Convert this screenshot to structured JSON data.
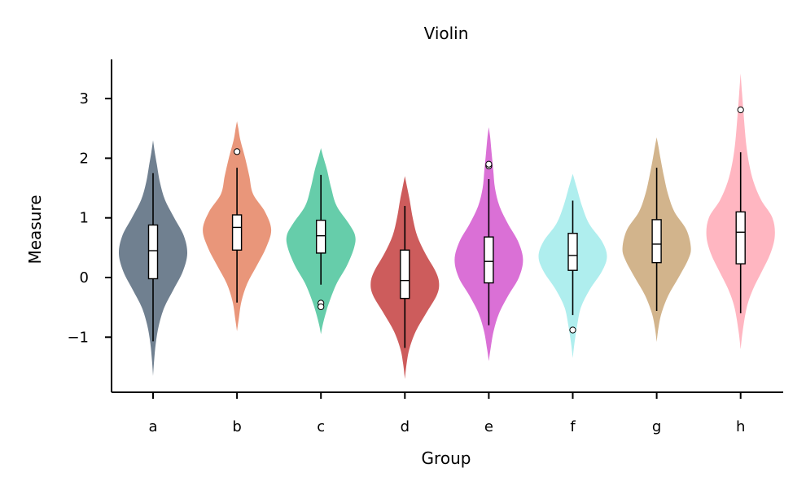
{
  "chart_data": {
    "type": "violin",
    "title": "Violin",
    "xlabel": "Group",
    "ylabel": "Measure",
    "ylim": [
      -1.95,
      3.65
    ],
    "yticks": [
      -1,
      0,
      1,
      2,
      3
    ],
    "ytick_labels": [
      "−1",
      "0",
      "1",
      "2",
      "3"
    ],
    "grid": false,
    "categories": [
      "a",
      "b",
      "c",
      "d",
      "e",
      "f",
      "g",
      "h"
    ],
    "colors": [
      "#708090",
      "#E9967A",
      "#66CDAA",
      "#CD5C5C",
      "#DA70D6",
      "#AFEEEE",
      "#D2B48C",
      "#FFB6C1"
    ],
    "groups": [
      {
        "name": "a",
        "min": -1.65,
        "max": 2.3,
        "median": 0.45,
        "q1": -0.02,
        "q3": 0.88,
        "whisker_low": -1.07,
        "whisker_high": 1.75,
        "outliers": [],
        "profile": [
          [
            -1.65,
            0.0
          ],
          [
            -1.4,
            0.03
          ],
          [
            -1.1,
            0.08
          ],
          [
            -0.8,
            0.17
          ],
          [
            -0.5,
            0.33
          ],
          [
            -0.2,
            0.6
          ],
          [
            0.1,
            0.87
          ],
          [
            0.4,
            1.0
          ],
          [
            0.7,
            0.9
          ],
          [
            1.0,
            0.62
          ],
          [
            1.3,
            0.35
          ],
          [
            1.6,
            0.2
          ],
          [
            1.9,
            0.11
          ],
          [
            2.1,
            0.05
          ],
          [
            2.3,
            0.0
          ]
        ]
      },
      {
        "name": "b",
        "min": -0.9,
        "max": 2.62,
        "median": 0.84,
        "q1": 0.46,
        "q3": 1.05,
        "whisker_low": -0.42,
        "whisker_high": 1.84,
        "outliers": [
          2.11
        ],
        "profile": [
          [
            -0.9,
            0.0
          ],
          [
            -0.7,
            0.05
          ],
          [
            -0.4,
            0.13
          ],
          [
            -0.1,
            0.3
          ],
          [
            0.2,
            0.58
          ],
          [
            0.5,
            0.85
          ],
          [
            0.8,
            1.0
          ],
          [
            1.1,
            0.82
          ],
          [
            1.4,
            0.47
          ],
          [
            1.7,
            0.36
          ],
          [
            2.0,
            0.24
          ],
          [
            2.3,
            0.1
          ],
          [
            2.5,
            0.04
          ],
          [
            2.62,
            0.0
          ]
        ]
      },
      {
        "name": "c",
        "min": -0.95,
        "max": 2.17,
        "median": 0.7,
        "q1": 0.41,
        "q3": 0.96,
        "whisker_low": -0.12,
        "whisker_high": 1.72,
        "outliers": [
          -0.43,
          -0.49
        ],
        "profile": [
          [
            -0.95,
            0.0
          ],
          [
            -0.8,
            0.05
          ],
          [
            -0.6,
            0.14
          ],
          [
            -0.4,
            0.25
          ],
          [
            -0.1,
            0.46
          ],
          [
            0.2,
            0.76
          ],
          [
            0.5,
            0.97
          ],
          [
            0.7,
            1.0
          ],
          [
            0.9,
            0.82
          ],
          [
            1.2,
            0.46
          ],
          [
            1.5,
            0.3
          ],
          [
            1.8,
            0.18
          ],
          [
            2.0,
            0.08
          ],
          [
            2.17,
            0.0
          ]
        ]
      },
      {
        "name": "d",
        "min": -1.7,
        "max": 1.7,
        "median": -0.05,
        "q1": -0.35,
        "q3": 0.46,
        "whisker_low": -1.18,
        "whisker_high": 1.2,
        "outliers": [],
        "profile": [
          [
            -1.7,
            0.0
          ],
          [
            -1.45,
            0.05
          ],
          [
            -1.2,
            0.13
          ],
          [
            -0.9,
            0.32
          ],
          [
            -0.6,
            0.62
          ],
          [
            -0.3,
            0.93
          ],
          [
            -0.1,
            1.0
          ],
          [
            0.1,
            0.9
          ],
          [
            0.4,
            0.6
          ],
          [
            0.7,
            0.36
          ],
          [
            1.0,
            0.23
          ],
          [
            1.3,
            0.14
          ],
          [
            1.5,
            0.07
          ],
          [
            1.7,
            0.0
          ]
        ]
      },
      {
        "name": "e",
        "min": -1.4,
        "max": 2.52,
        "median": 0.27,
        "q1": -0.09,
        "q3": 0.68,
        "whisker_low": -0.8,
        "whisker_high": 1.65,
        "outliers": [
          1.87,
          1.9
        ],
        "profile": [
          [
            -1.4,
            0.0
          ],
          [
            -1.2,
            0.05
          ],
          [
            -0.9,
            0.14
          ],
          [
            -0.6,
            0.3
          ],
          [
            -0.3,
            0.57
          ],
          [
            0.0,
            0.88
          ],
          [
            0.3,
            1.0
          ],
          [
            0.6,
            0.86
          ],
          [
            0.9,
            0.56
          ],
          [
            1.2,
            0.31
          ],
          [
            1.5,
            0.18
          ],
          [
            1.8,
            0.13
          ],
          [
            2.1,
            0.08
          ],
          [
            2.35,
            0.04
          ],
          [
            2.52,
            0.0
          ]
        ]
      },
      {
        "name": "f",
        "min": -1.35,
        "max": 1.74,
        "median": 0.37,
        "q1": 0.12,
        "q3": 0.74,
        "whisker_low": -0.63,
        "whisker_high": 1.29,
        "outliers": [
          -0.88
        ],
        "profile": [
          [
            -1.35,
            0.0
          ],
          [
            -1.1,
            0.05
          ],
          [
            -0.8,
            0.13
          ],
          [
            -0.5,
            0.24
          ],
          [
            -0.2,
            0.5
          ],
          [
            0.1,
            0.85
          ],
          [
            0.35,
            1.0
          ],
          [
            0.6,
            0.86
          ],
          [
            0.9,
            0.48
          ],
          [
            1.2,
            0.27
          ],
          [
            1.5,
            0.12
          ],
          [
            1.74,
            0.0
          ]
        ]
      },
      {
        "name": "g",
        "min": -1.08,
        "max": 2.35,
        "median": 0.56,
        "q1": 0.25,
        "q3": 0.97,
        "whisker_low": -0.56,
        "whisker_high": 1.84,
        "outliers": [],
        "profile": [
          [
            -1.08,
            0.0
          ],
          [
            -0.85,
            0.05
          ],
          [
            -0.6,
            0.14
          ],
          [
            -0.3,
            0.34
          ],
          [
            0.0,
            0.64
          ],
          [
            0.3,
            0.92
          ],
          [
            0.5,
            1.0
          ],
          [
            0.8,
            0.87
          ],
          [
            1.1,
            0.52
          ],
          [
            1.4,
            0.33
          ],
          [
            1.7,
            0.21
          ],
          [
            2.0,
            0.11
          ],
          [
            2.2,
            0.05
          ],
          [
            2.35,
            0.0
          ]
        ]
      },
      {
        "name": "h",
        "min": -1.2,
        "max": 3.42,
        "median": 0.76,
        "q1": 0.23,
        "q3": 1.1,
        "whisker_low": -0.6,
        "whisker_high": 2.1,
        "outliers": [
          2.81
        ],
        "profile": [
          [
            -1.2,
            0.0
          ],
          [
            -0.9,
            0.06
          ],
          [
            -0.5,
            0.18
          ],
          [
            -0.2,
            0.36
          ],
          [
            0.1,
            0.62
          ],
          [
            0.4,
            0.87
          ],
          [
            0.7,
            1.0
          ],
          [
            1.0,
            0.93
          ],
          [
            1.3,
            0.6
          ],
          [
            1.6,
            0.38
          ],
          [
            1.9,
            0.25
          ],
          [
            2.2,
            0.17
          ],
          [
            2.5,
            0.12
          ],
          [
            2.8,
            0.08
          ],
          [
            3.1,
            0.04
          ],
          [
            3.42,
            0.0
          ]
        ]
      }
    ]
  }
}
